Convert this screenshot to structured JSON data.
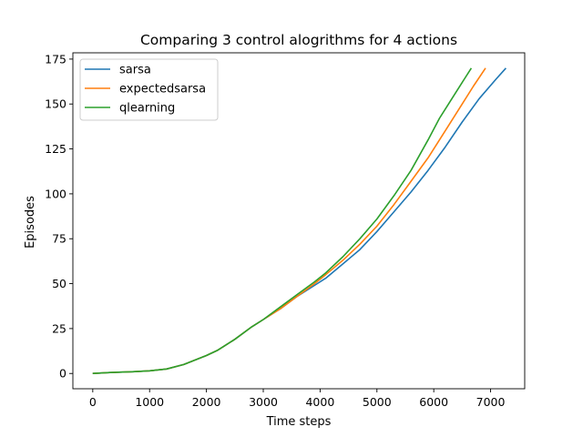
{
  "chart_data": {
    "type": "line",
    "title": "Comparing 3 control alogrithms for 4 actions",
    "xlabel": "Time steps",
    "ylabel": "Episodes",
    "xlim": [
      -350,
      7600
    ],
    "ylim": [
      -8.5,
      178.5
    ],
    "x_ticks": [
      0,
      1000,
      2000,
      3000,
      4000,
      5000,
      6000,
      7000
    ],
    "y_ticks": [
      0,
      25,
      50,
      75,
      100,
      125,
      150,
      175
    ],
    "legend_position": "top-left",
    "grid": false,
    "series": [
      {
        "name": "sarsa",
        "color": "#1f77b4",
        "x": [
          0,
          300,
          700,
          1000,
          1300,
          1600,
          2000,
          2200,
          2500,
          2800,
          3000,
          3300,
          3600,
          3900,
          4100,
          4400,
          4700,
          5000,
          5300,
          5600,
          5900,
          6200,
          6500,
          6800,
          7100,
          7270
        ],
        "y": [
          0,
          0.5,
          1,
          1.5,
          2.5,
          5,
          10,
          13,
          19,
          26,
          30,
          36,
          43,
          49,
          53,
          61,
          69,
          79,
          90,
          101,
          113,
          126,
          140,
          153,
          164,
          170
        ]
      },
      {
        "name": "expectedsarsa",
        "color": "#ff7f0e",
        "x": [
          0,
          300,
          700,
          1000,
          1300,
          1600,
          2000,
          2200,
          2500,
          2800,
          3000,
          3300,
          3600,
          3900,
          4100,
          4400,
          4700,
          5000,
          5300,
          5600,
          5900,
          6200,
          6500,
          6700,
          6910
        ],
        "y": [
          0,
          0.5,
          1,
          1.5,
          2.5,
          5,
          10,
          13,
          19,
          26,
          30,
          36,
          43,
          50,
          55,
          63,
          72,
          82,
          94,
          107,
          120,
          135,
          150,
          160,
          170
        ]
      },
      {
        "name": "qlearning",
        "color": "#2ca02c",
        "x": [
          0,
          300,
          700,
          1000,
          1300,
          1600,
          2000,
          2200,
          2500,
          2800,
          3000,
          3300,
          3600,
          3900,
          4100,
          4400,
          4700,
          5000,
          5300,
          5600,
          5900,
          6100,
          6400,
          6660
        ],
        "y": [
          0,
          0.5,
          1,
          1.5,
          2.5,
          5,
          10,
          13,
          19,
          26,
          30,
          37,
          44,
          51,
          56,
          65,
          75,
          86,
          99,
          113,
          130,
          142,
          157,
          170
        ]
      }
    ]
  }
}
